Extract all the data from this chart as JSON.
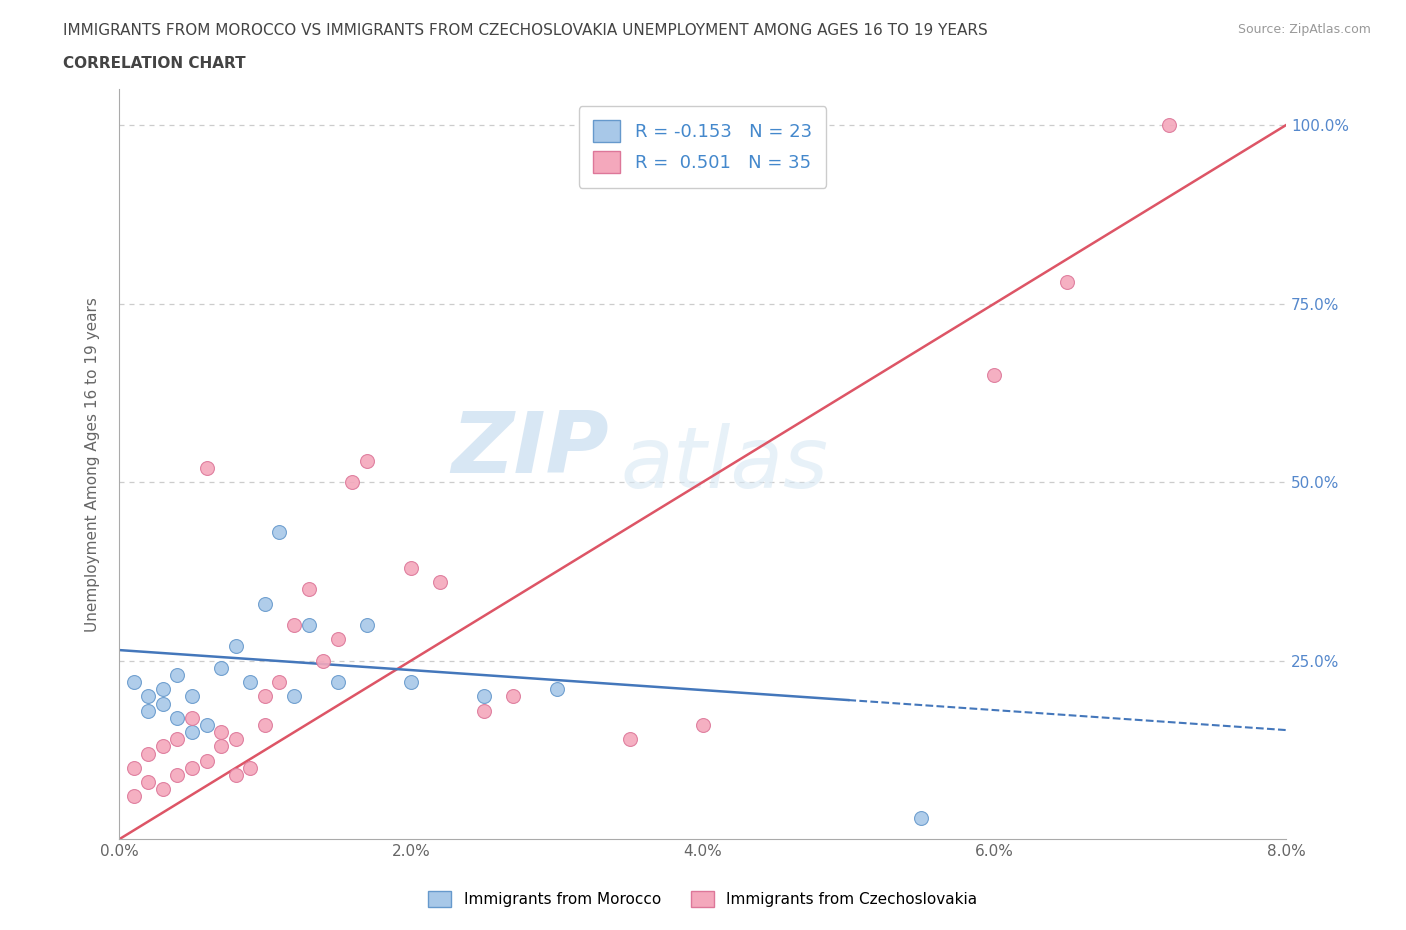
{
  "title_line1": "IMMIGRANTS FROM MOROCCO VS IMMIGRANTS FROM CZECHOSLOVAKIA UNEMPLOYMENT AMONG AGES 16 TO 19 YEARS",
  "title_line2": "CORRELATION CHART",
  "source": "Source: ZipAtlas.com",
  "ylabel": "Unemployment Among Ages 16 to 19 years",
  "xlim": [
    0.0,
    0.08
  ],
  "ylim": [
    0.0,
    1.05
  ],
  "xtick_labels": [
    "0.0%",
    "2.0%",
    "4.0%",
    "6.0%",
    "8.0%"
  ],
  "xtick_values": [
    0.0,
    0.02,
    0.04,
    0.06,
    0.08
  ],
  "ytick_labels": [
    "25.0%",
    "50.0%",
    "75.0%",
    "100.0%"
  ],
  "ytick_values": [
    0.25,
    0.5,
    0.75,
    1.0
  ],
  "morocco_color": "#a8c8e8",
  "morocco_edge": "#6699cc",
  "czechoslovakia_color": "#f4a8bc",
  "czechoslovakia_edge": "#dd7799",
  "trend_morocco_color": "#4477bb",
  "trend_czechoslovakia_color": "#dd5566",
  "legend_r_morocco": "R = -0.153",
  "legend_n_morocco": "N = 23",
  "legend_r_czech": "R =  0.501",
  "legend_n_czech": "N = 35",
  "legend_label_morocco": "Immigrants from Morocco",
  "legend_label_czech": "Immigrants from Czechoslovakia",
  "watermark_zip": "ZIP",
  "watermark_atlas": "atlas",
  "background_color": "#ffffff",
  "grid_color": "#cccccc",
  "title_color": "#444444",
  "axis_label_color": "#666666",
  "morocco_x": [
    0.001,
    0.002,
    0.002,
    0.003,
    0.003,
    0.004,
    0.004,
    0.005,
    0.005,
    0.006,
    0.007,
    0.008,
    0.009,
    0.01,
    0.011,
    0.012,
    0.013,
    0.015,
    0.017,
    0.02,
    0.025,
    0.03,
    0.055
  ],
  "morocco_y": [
    0.22,
    0.2,
    0.18,
    0.19,
    0.21,
    0.23,
    0.17,
    0.2,
    0.15,
    0.16,
    0.24,
    0.27,
    0.22,
    0.33,
    0.43,
    0.2,
    0.3,
    0.22,
    0.3,
    0.22,
    0.2,
    0.21,
    0.03
  ],
  "czech_x": [
    0.001,
    0.001,
    0.002,
    0.002,
    0.003,
    0.003,
    0.004,
    0.004,
    0.005,
    0.005,
    0.006,
    0.006,
    0.007,
    0.007,
    0.008,
    0.008,
    0.009,
    0.01,
    0.01,
    0.011,
    0.012,
    0.013,
    0.014,
    0.015,
    0.016,
    0.017,
    0.02,
    0.022,
    0.025,
    0.027,
    0.035,
    0.04,
    0.06,
    0.065,
    0.072
  ],
  "czech_y": [
    0.06,
    0.1,
    0.08,
    0.12,
    0.07,
    0.13,
    0.09,
    0.14,
    0.1,
    0.17,
    0.11,
    0.52,
    0.13,
    0.15,
    0.09,
    0.14,
    0.1,
    0.2,
    0.16,
    0.22,
    0.3,
    0.35,
    0.25,
    0.28,
    0.5,
    0.53,
    0.38,
    0.36,
    0.18,
    0.2,
    0.14,
    0.16,
    0.65,
    0.78,
    1.0
  ]
}
